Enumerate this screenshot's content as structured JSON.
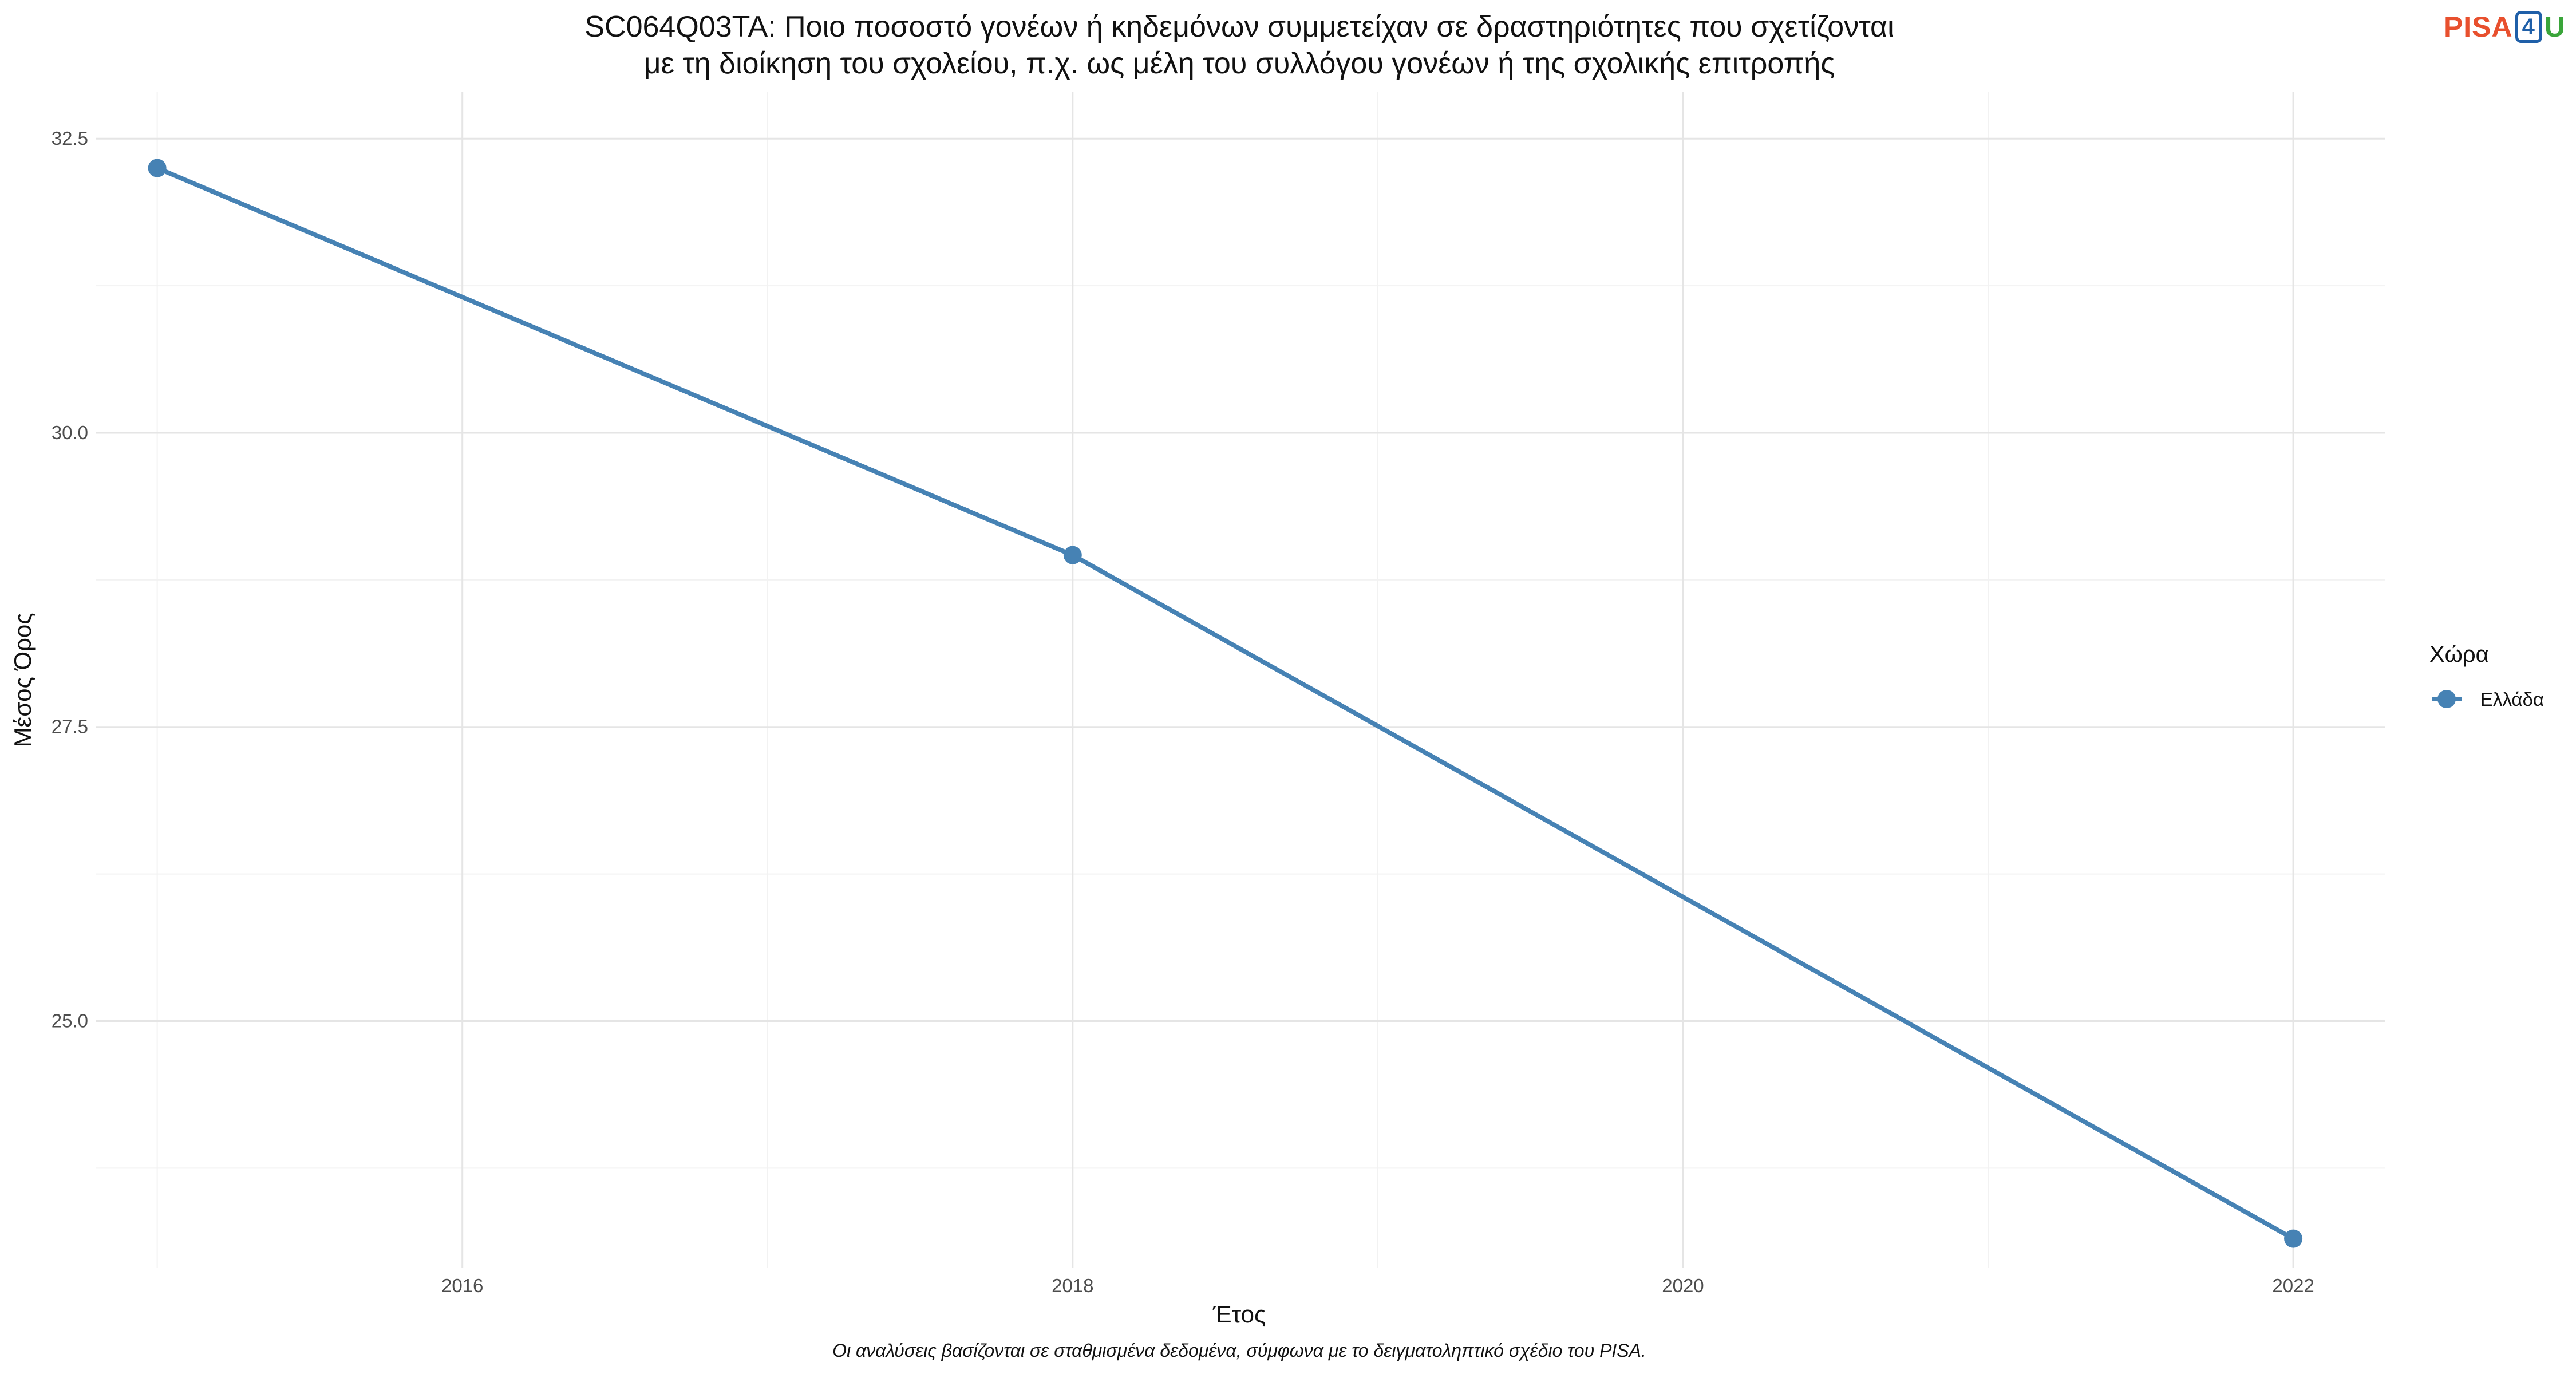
{
  "chart_data": {
    "type": "line",
    "title_line1": "SC064Q03TA: Ποιο ποσοστό γονέων ή κηδεμόνων συμμετείχαν σε δραστηριότητες που σχετίζονται",
    "title_line2": "με τη διοίκηση του σχολείου, π.χ. ως μέλη του συλλόγου γονέων ή της σχολικής επιτροπής",
    "xlabel": "Έτος",
    "ylabel": "Μέσος Όρος",
    "caption": "Οι αναλύσεις βασίζονται σε σταθμισμένα δεδομένα, σύμφωνα με το δειγματοληπτικό σχέδιο του PISA.",
    "xlim": [
      2014.8,
      2022.3
    ],
    "ylim": [
      22.9,
      32.9
    ],
    "x_ticks": [
      2016,
      2018,
      2020,
      2022
    ],
    "x_tick_labels": [
      "2016",
      "2018",
      "2020",
      "2022"
    ],
    "y_ticks": [
      25.0,
      27.5,
      30.0,
      32.5
    ],
    "y_tick_labels": [
      "25.0",
      "27.5",
      "30.0",
      "32.5"
    ],
    "grid": true,
    "legend": {
      "title": "Χώρα",
      "placement": "right"
    },
    "series": [
      {
        "name": "Ελλάδα",
        "color": "#4682b4",
        "x": [
          2015,
          2018,
          2022
        ],
        "y": [
          32.25,
          28.96,
          23.15
        ]
      }
    ]
  },
  "logo": {
    "part1": "PISA",
    "part2": "4",
    "part3": "U"
  }
}
